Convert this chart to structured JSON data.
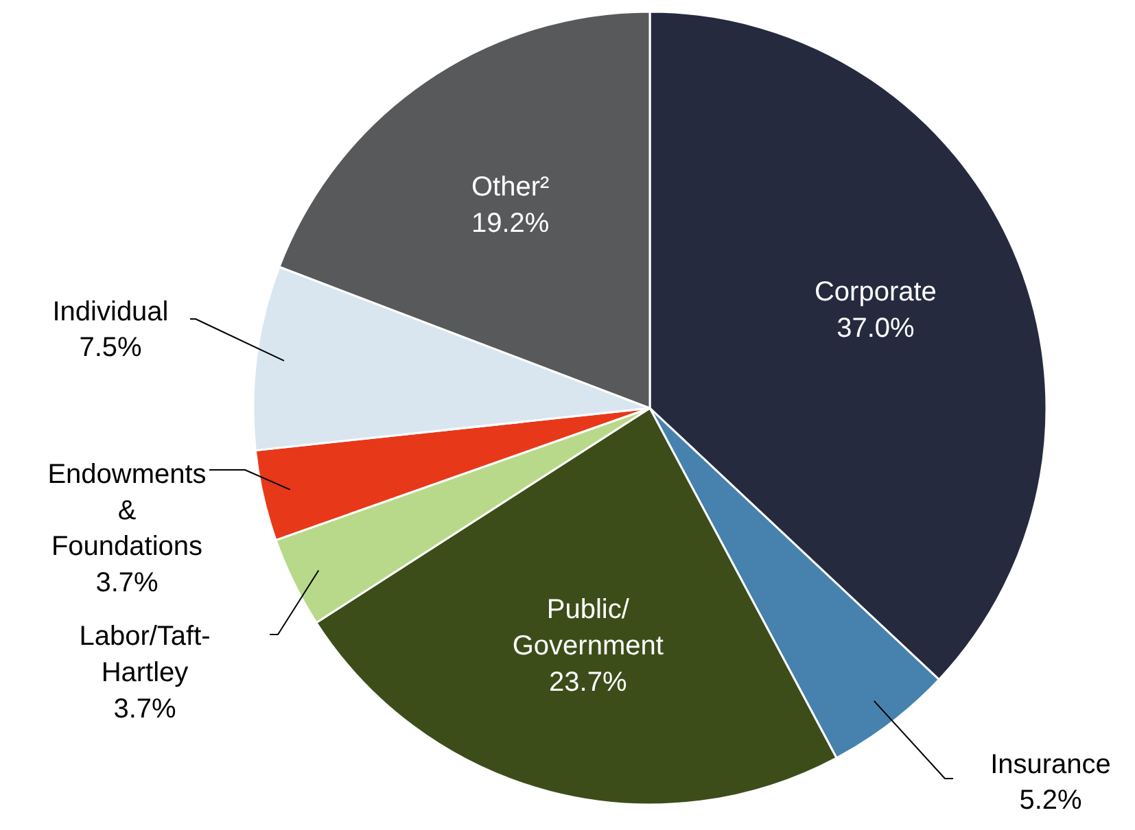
{
  "chart_data": {
    "type": "pie",
    "categories": [
      "Corporate",
      "Insurance",
      "Public/Government",
      "Labor/Taft-Hartley",
      "Endowments & Foundations",
      "Individual",
      "Other²"
    ],
    "values": [
      37.0,
      5.2,
      23.7,
      3.7,
      3.7,
      7.5,
      19.2
    ],
    "colors": [
      "#252a3e",
      "#4682ad",
      "#3d4d1a",
      "#b9d98a",
      "#e8381a",
      "#d9e6f0",
      "#58595b"
    ],
    "value_labels": [
      "37.0%",
      "5.2%",
      "23.7%",
      "3.7%",
      "3.7%",
      "7.5%",
      "19.2%"
    ]
  }
}
